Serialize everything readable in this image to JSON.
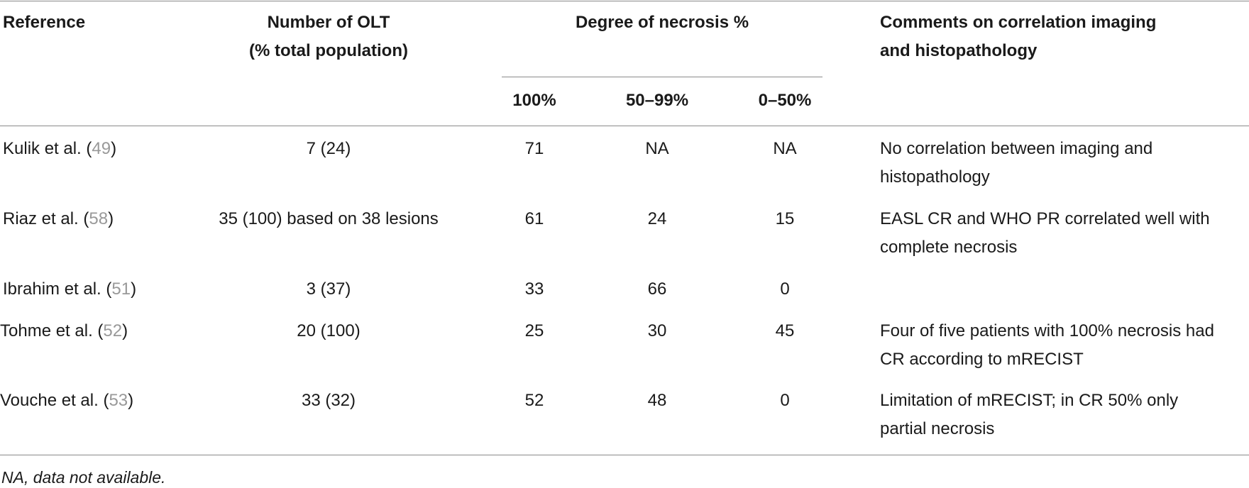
{
  "header": {
    "reference": "Reference",
    "olt_line1": "Number of OLT",
    "olt_line2": "(% total population)",
    "necrosis": "Degree of necrosis %",
    "sub_100": "100%",
    "sub_50_99": "50–99%",
    "sub_0_50": "0–50%",
    "comments_line1": "Comments on correlation imaging",
    "comments_line2": "and histopathology"
  },
  "rows": [
    {
      "author": "Kulik et al. (",
      "ref": "49",
      "close": ")",
      "olt": "7 (24)",
      "n100": "71",
      "n50_99": "NA",
      "n0_50": "NA",
      "comment_line1": "No correlation between imaging and",
      "comment_line2": "histopathology"
    },
    {
      "author": "Riaz et al. (",
      "ref": "58",
      "close": ")",
      "olt": "35 (100) based on 38 lesions",
      "n100": "61",
      "n50_99": "24",
      "n0_50": "15",
      "comment_line1": "EASL CR and WHO PR correlated well with",
      "comment_line2": "complete necrosis"
    },
    {
      "author": "Ibrahim et al. (",
      "ref": "51",
      "close": ")",
      "olt": "3 (37)",
      "n100": "33",
      "n50_99": "66",
      "n0_50": "0",
      "comment_line1": "",
      "comment_line2": ""
    },
    {
      "author": "Tohme et al. (",
      "ref": "52",
      "close": ")",
      "olt": "20 (100)",
      "n100": "25",
      "n50_99": "30",
      "n0_50": "45",
      "comment_line1": "Four of five patients with 100% necrosis had",
      "comment_line2": "CR according to mRECIST"
    },
    {
      "author": "Vouche et al. (",
      "ref": "53",
      "close": ")",
      "olt": "33 (32)",
      "n100": "52",
      "n50_99": "48",
      "n0_50": "0",
      "comment_line1": "Limitation of mRECIST; in CR 50% only",
      "comment_line2": "partial necrosis"
    }
  ],
  "footnote": "NA, data not available."
}
